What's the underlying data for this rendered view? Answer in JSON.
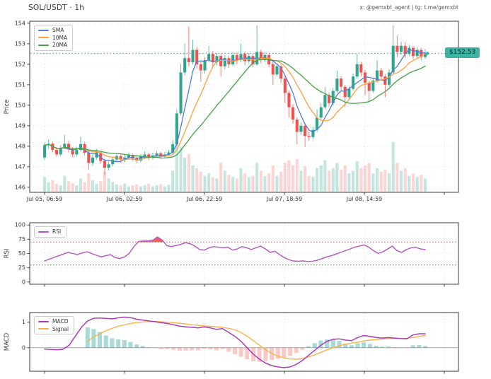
{
  "header": {
    "title": "SOL/USDT · 1h",
    "credit": "x: @gemxbt_agent | tg: t.me/gemxbt"
  },
  "colors": {
    "up": "#2fa58d",
    "down": "#ef5350",
    "vol_up": "rgba(47,165,141,0.28)",
    "vol_down": "rgba(239,83,80,0.24)",
    "sma5": "#4f7bd9",
    "ma10": "#ff9f40",
    "ma20": "#45a048",
    "rsi": "#b455bb",
    "rsi_fill": "#e8524a",
    "overbought_line": "#f07470",
    "oversold_line": "#57ac5c",
    "macd": "#a93db8",
    "signal": "#f7b34c",
    "hist_pos": "rgba(38,166,154,0.4)",
    "hist_neg": "rgba(239,83,80,0.32)",
    "price_line": "#3db3a3",
    "grid": "#d9d9d9",
    "border": "#3a3a3a",
    "zero_line": "#a6a6a6",
    "tick_text": "#333333"
  },
  "chart_data": [
    {
      "type": "candlestick",
      "title": "SOL/USDT · 1h",
      "ylabel": "Price",
      "yticks": [
        146,
        147,
        148,
        149,
        150,
        151,
        152,
        153,
        154
      ],
      "ylim": [
        145.75,
        154.1
      ],
      "xticklabels": [
        "Jul 05, 06:59",
        "Jul 06, 02:59",
        "Jul 06, 22:59",
        "Jul 07, 18:59",
        "Jul 08, 14:59"
      ],
      "legend": [
        "SMA",
        "10MA",
        "20MA"
      ],
      "ma_windows": [
        5,
        10,
        20
      ],
      "current_price": 152.53,
      "current_price_label": "$152.53",
      "candles": [
        [
          147.45,
          148.18,
          147.32,
          148.05
        ],
        [
          148.05,
          148.32,
          147.88,
          148.12
        ],
        [
          148.12,
          148.22,
          147.7,
          147.82
        ],
        [
          147.82,
          147.95,
          147.48,
          147.6
        ],
        [
          147.6,
          148.05,
          147.52,
          147.92
        ],
        [
          147.92,
          148.55,
          147.85,
          148.12
        ],
        [
          148.12,
          148.25,
          147.7,
          147.85
        ],
        [
          147.85,
          147.95,
          147.45,
          147.6
        ],
        [
          147.6,
          147.98,
          147.5,
          147.82
        ],
        [
          147.82,
          148.45,
          147.75,
          148.1
        ],
        [
          148.1,
          148.22,
          147.55,
          147.68
        ],
        [
          147.68,
          147.8,
          146.85,
          147.18
        ],
        [
          147.18,
          147.6,
          147.05,
          147.45
        ],
        [
          147.45,
          147.85,
          147.35,
          147.7
        ],
        [
          147.7,
          147.78,
          147.15,
          147.28
        ],
        [
          147.28,
          147.4,
          146.6,
          146.95
        ],
        [
          146.95,
          147.25,
          146.82,
          147.12
        ],
        [
          147.12,
          147.48,
          147.02,
          147.35
        ],
        [
          147.35,
          147.65,
          147.25,
          147.52
        ],
        [
          147.52,
          147.62,
          147.2,
          147.35
        ],
        [
          147.35,
          147.58,
          147.22,
          147.45
        ],
        [
          147.45,
          147.7,
          147.35,
          147.55
        ],
        [
          147.55,
          147.65,
          147.28,
          147.4
        ],
        [
          147.4,
          147.52,
          147.18,
          147.3
        ],
        [
          147.3,
          147.62,
          147.22,
          147.5
        ],
        [
          147.5,
          147.75,
          147.4,
          147.6
        ],
        [
          147.6,
          147.7,
          147.32,
          147.45
        ],
        [
          147.45,
          147.68,
          147.35,
          147.55
        ],
        [
          147.55,
          147.78,
          147.45,
          147.65
        ],
        [
          147.65,
          147.72,
          147.38,
          147.5
        ],
        [
          147.5,
          147.72,
          147.42,
          147.6
        ],
        [
          147.6,
          147.82,
          147.5,
          147.7
        ],
        [
          147.7,
          148.3,
          147.6,
          148.1
        ],
        [
          148.1,
          149.8,
          148.05,
          149.6
        ],
        [
          149.6,
          152.0,
          149.5,
          151.6
        ],
        [
          151.6,
          153.0,
          151.45,
          152.3
        ],
        [
          152.3,
          153.85,
          151.9,
          152.1
        ],
        [
          152.1,
          153.2,
          152.0,
          152.7
        ],
        [
          152.7,
          152.85,
          151.8,
          152.0
        ],
        [
          152.0,
          152.1,
          151.15,
          151.7
        ],
        [
          151.7,
          152.35,
          151.55,
          152.2
        ],
        [
          152.2,
          152.9,
          152.1,
          152.5
        ],
        [
          152.5,
          152.65,
          151.9,
          152.1
        ],
        [
          152.1,
          152.55,
          151.95,
          152.4
        ],
        [
          152.4,
          152.5,
          151.4,
          151.9
        ],
        [
          151.9,
          152.45,
          151.75,
          152.3
        ],
        [
          152.3,
          152.42,
          151.82,
          152.0
        ],
        [
          152.0,
          152.6,
          151.9,
          152.45
        ],
        [
          152.45,
          152.55,
          152.0,
          152.2
        ],
        [
          152.2,
          153.0,
          152.1,
          152.5
        ],
        [
          152.5,
          152.62,
          151.95,
          152.15
        ],
        [
          152.15,
          152.55,
          152.05,
          152.4
        ],
        [
          152.4,
          152.5,
          151.85,
          152.0
        ],
        [
          152.0,
          153.9,
          151.92,
          152.6
        ],
        [
          152.6,
          152.72,
          152.05,
          152.2
        ],
        [
          152.2,
          152.6,
          152.1,
          152.45
        ],
        [
          152.45,
          152.55,
          151.85,
          152.0
        ],
        [
          152.0,
          152.1,
          151.0,
          151.5
        ],
        [
          151.5,
          152.05,
          151.4,
          151.9
        ],
        [
          151.9,
          151.98,
          151.1,
          151.3
        ],
        [
          151.3,
          151.4,
          150.1,
          150.6
        ],
        [
          150.6,
          150.72,
          149.4,
          149.9
        ],
        [
          149.9,
          150.05,
          149.1,
          149.3
        ],
        [
          149.3,
          149.42,
          148.1,
          148.7
        ],
        [
          148.7,
          149.15,
          148.55,
          149.0
        ],
        [
          149.0,
          149.1,
          147.95,
          148.5
        ],
        [
          148.5,
          148.72,
          148.25,
          148.45
        ],
        [
          148.45,
          148.95,
          148.35,
          148.8
        ],
        [
          148.8,
          149.8,
          148.7,
          149.4
        ],
        [
          149.4,
          150.1,
          149.3,
          149.9
        ],
        [
          149.9,
          150.9,
          149.8,
          150.5
        ],
        [
          150.5,
          150.62,
          149.95,
          150.1
        ],
        [
          150.1,
          150.85,
          150.0,
          150.7
        ],
        [
          150.7,
          151.7,
          150.6,
          151.3
        ],
        [
          151.3,
          151.42,
          150.72,
          150.9
        ],
        [
          150.9,
          151.0,
          149.9,
          150.4
        ],
        [
          150.4,
          150.95,
          150.3,
          150.8
        ],
        [
          150.8,
          151.55,
          150.7,
          151.4
        ],
        [
          151.4,
          152.5,
          151.3,
          152.0
        ],
        [
          152.0,
          152.12,
          151.4,
          151.6
        ],
        [
          151.6,
          151.72,
          150.5,
          151.1
        ],
        [
          151.1,
          151.2,
          150.2,
          150.7
        ],
        [
          150.7,
          151.35,
          150.6,
          151.2
        ],
        [
          151.2,
          152.2,
          151.1,
          151.7
        ],
        [
          151.7,
          151.82,
          151.25,
          151.4
        ],
        [
          151.4,
          151.5,
          150.4,
          151.0
        ],
        [
          151.0,
          151.75,
          150.9,
          151.6
        ],
        [
          151.6,
          153.9,
          151.5,
          152.9
        ],
        [
          152.9,
          153.4,
          152.35,
          152.6
        ],
        [
          152.6,
          153.1,
          152.45,
          152.9
        ],
        [
          152.9,
          153.1,
          152.3,
          152.5
        ],
        [
          152.5,
          152.95,
          152.4,
          152.8
        ],
        [
          152.8,
          152.9,
          152.25,
          152.4
        ],
        [
          152.4,
          152.85,
          152.3,
          152.7
        ],
        [
          152.7,
          152.8,
          152.2,
          152.35
        ],
        [
          152.35,
          152.75,
          152.25,
          152.53
        ]
      ],
      "volume": [
        0.28,
        0.18,
        0.22,
        0.15,
        0.12,
        0.3,
        0.2,
        0.16,
        0.12,
        0.25,
        0.18,
        0.35,
        0.22,
        0.15,
        0.2,
        0.38,
        0.25,
        0.18,
        0.14,
        0.12,
        0.15,
        0.1,
        0.12,
        0.14,
        0.1,
        0.12,
        0.15,
        0.1,
        0.12,
        0.14,
        0.1,
        0.13,
        0.4,
        1.0,
        0.85,
        0.65,
        0.72,
        0.5,
        0.45,
        0.38,
        0.3,
        0.35,
        0.28,
        0.25,
        0.55,
        0.4,
        0.32,
        0.28,
        0.25,
        0.45,
        0.35,
        0.28,
        0.3,
        0.55,
        0.4,
        0.3,
        0.35,
        0.5,
        0.3,
        0.38,
        0.55,
        0.6,
        0.5,
        0.62,
        0.4,
        0.48,
        0.3,
        0.28,
        0.45,
        0.5,
        0.6,
        0.4,
        0.45,
        0.55,
        0.42,
        0.5,
        0.35,
        0.4,
        0.58,
        0.45,
        0.5,
        0.55,
        0.35,
        0.45,
        0.38,
        0.42,
        0.35,
        0.95,
        0.55,
        0.4,
        0.45,
        0.3,
        0.35,
        0.28,
        0.32,
        0.25
      ]
    },
    {
      "type": "line",
      "ylabel": "RSI",
      "legend": [
        "RSI"
      ],
      "yticks": [
        0,
        25,
        50,
        75,
        100
      ],
      "ylim": [
        -4,
        104
      ],
      "overbought": 70,
      "oversold": 30,
      "values": [
        37,
        40,
        43,
        46,
        49,
        52,
        50,
        48,
        51,
        53,
        50,
        47,
        44,
        46,
        48,
        43,
        41,
        44,
        50,
        62,
        71,
        72,
        72,
        73,
        79,
        74,
        64,
        62,
        64,
        66,
        69,
        67,
        63,
        57,
        56,
        60,
        62,
        61,
        60,
        61,
        56,
        58,
        62,
        60,
        57,
        60,
        63,
        58,
        52,
        54,
        48,
        43,
        39,
        37,
        36.5,
        37,
        36,
        36.5,
        38,
        41,
        44,
        46,
        49,
        52,
        55,
        58,
        61,
        63,
        65,
        61,
        55,
        50,
        53,
        58,
        63,
        55,
        52,
        57,
        60,
        61,
        58,
        57
      ]
    },
    {
      "type": "macd",
      "ylabel": "MACD",
      "legend": [
        "MACD",
        "Signal"
      ],
      "yticks": [
        0,
        1
      ],
      "ylim": [
        -0.92,
        1.38
      ],
      "macd": [
        -0.05,
        -0.07,
        -0.08,
        -0.06,
        0.1,
        0.45,
        0.8,
        1.05,
        1.15,
        1.17,
        1.15,
        1.13,
        1.17,
        1.2,
        1.18,
        1.12,
        1.08,
        1.05,
        1.02,
        0.98,
        0.95,
        0.9,
        0.85,
        0.82,
        0.8,
        0.78,
        0.82,
        0.78,
        0.72,
        0.75,
        0.6,
        0.45,
        0.25,
        0.0,
        -0.25,
        -0.45,
        -0.6,
        -0.7,
        -0.75,
        -0.78,
        -0.75,
        -0.65,
        -0.5,
        -0.3,
        -0.1,
        0.1,
        0.25,
        0.33,
        0.35,
        0.3,
        0.28,
        0.4,
        0.48,
        0.45,
        0.4,
        0.38,
        0.4,
        0.38,
        0.36,
        0.35,
        0.5,
        0.55,
        0.55
      ],
      "signal": [
        null,
        null,
        null,
        null,
        null,
        null,
        null,
        0.25,
        0.42,
        0.55,
        0.67,
        0.76,
        0.84,
        0.9,
        0.95,
        0.99,
        1.01,
        1.03,
        1.03,
        1.02,
        1.0,
        0.98,
        0.96,
        0.93,
        0.9,
        0.88,
        0.86,
        0.84,
        0.82,
        0.8,
        0.76,
        0.7,
        0.6,
        0.45,
        0.28,
        0.1,
        -0.08,
        -0.22,
        -0.33,
        -0.4,
        -0.44,
        -0.45,
        -0.42,
        -0.36,
        -0.28,
        -0.18,
        -0.08,
        0.0,
        0.08,
        0.14,
        0.18,
        0.22,
        0.27,
        0.3,
        0.32,
        0.34,
        0.35,
        0.36,
        0.36,
        0.37,
        0.4,
        0.44,
        0.48
      ]
    }
  ]
}
